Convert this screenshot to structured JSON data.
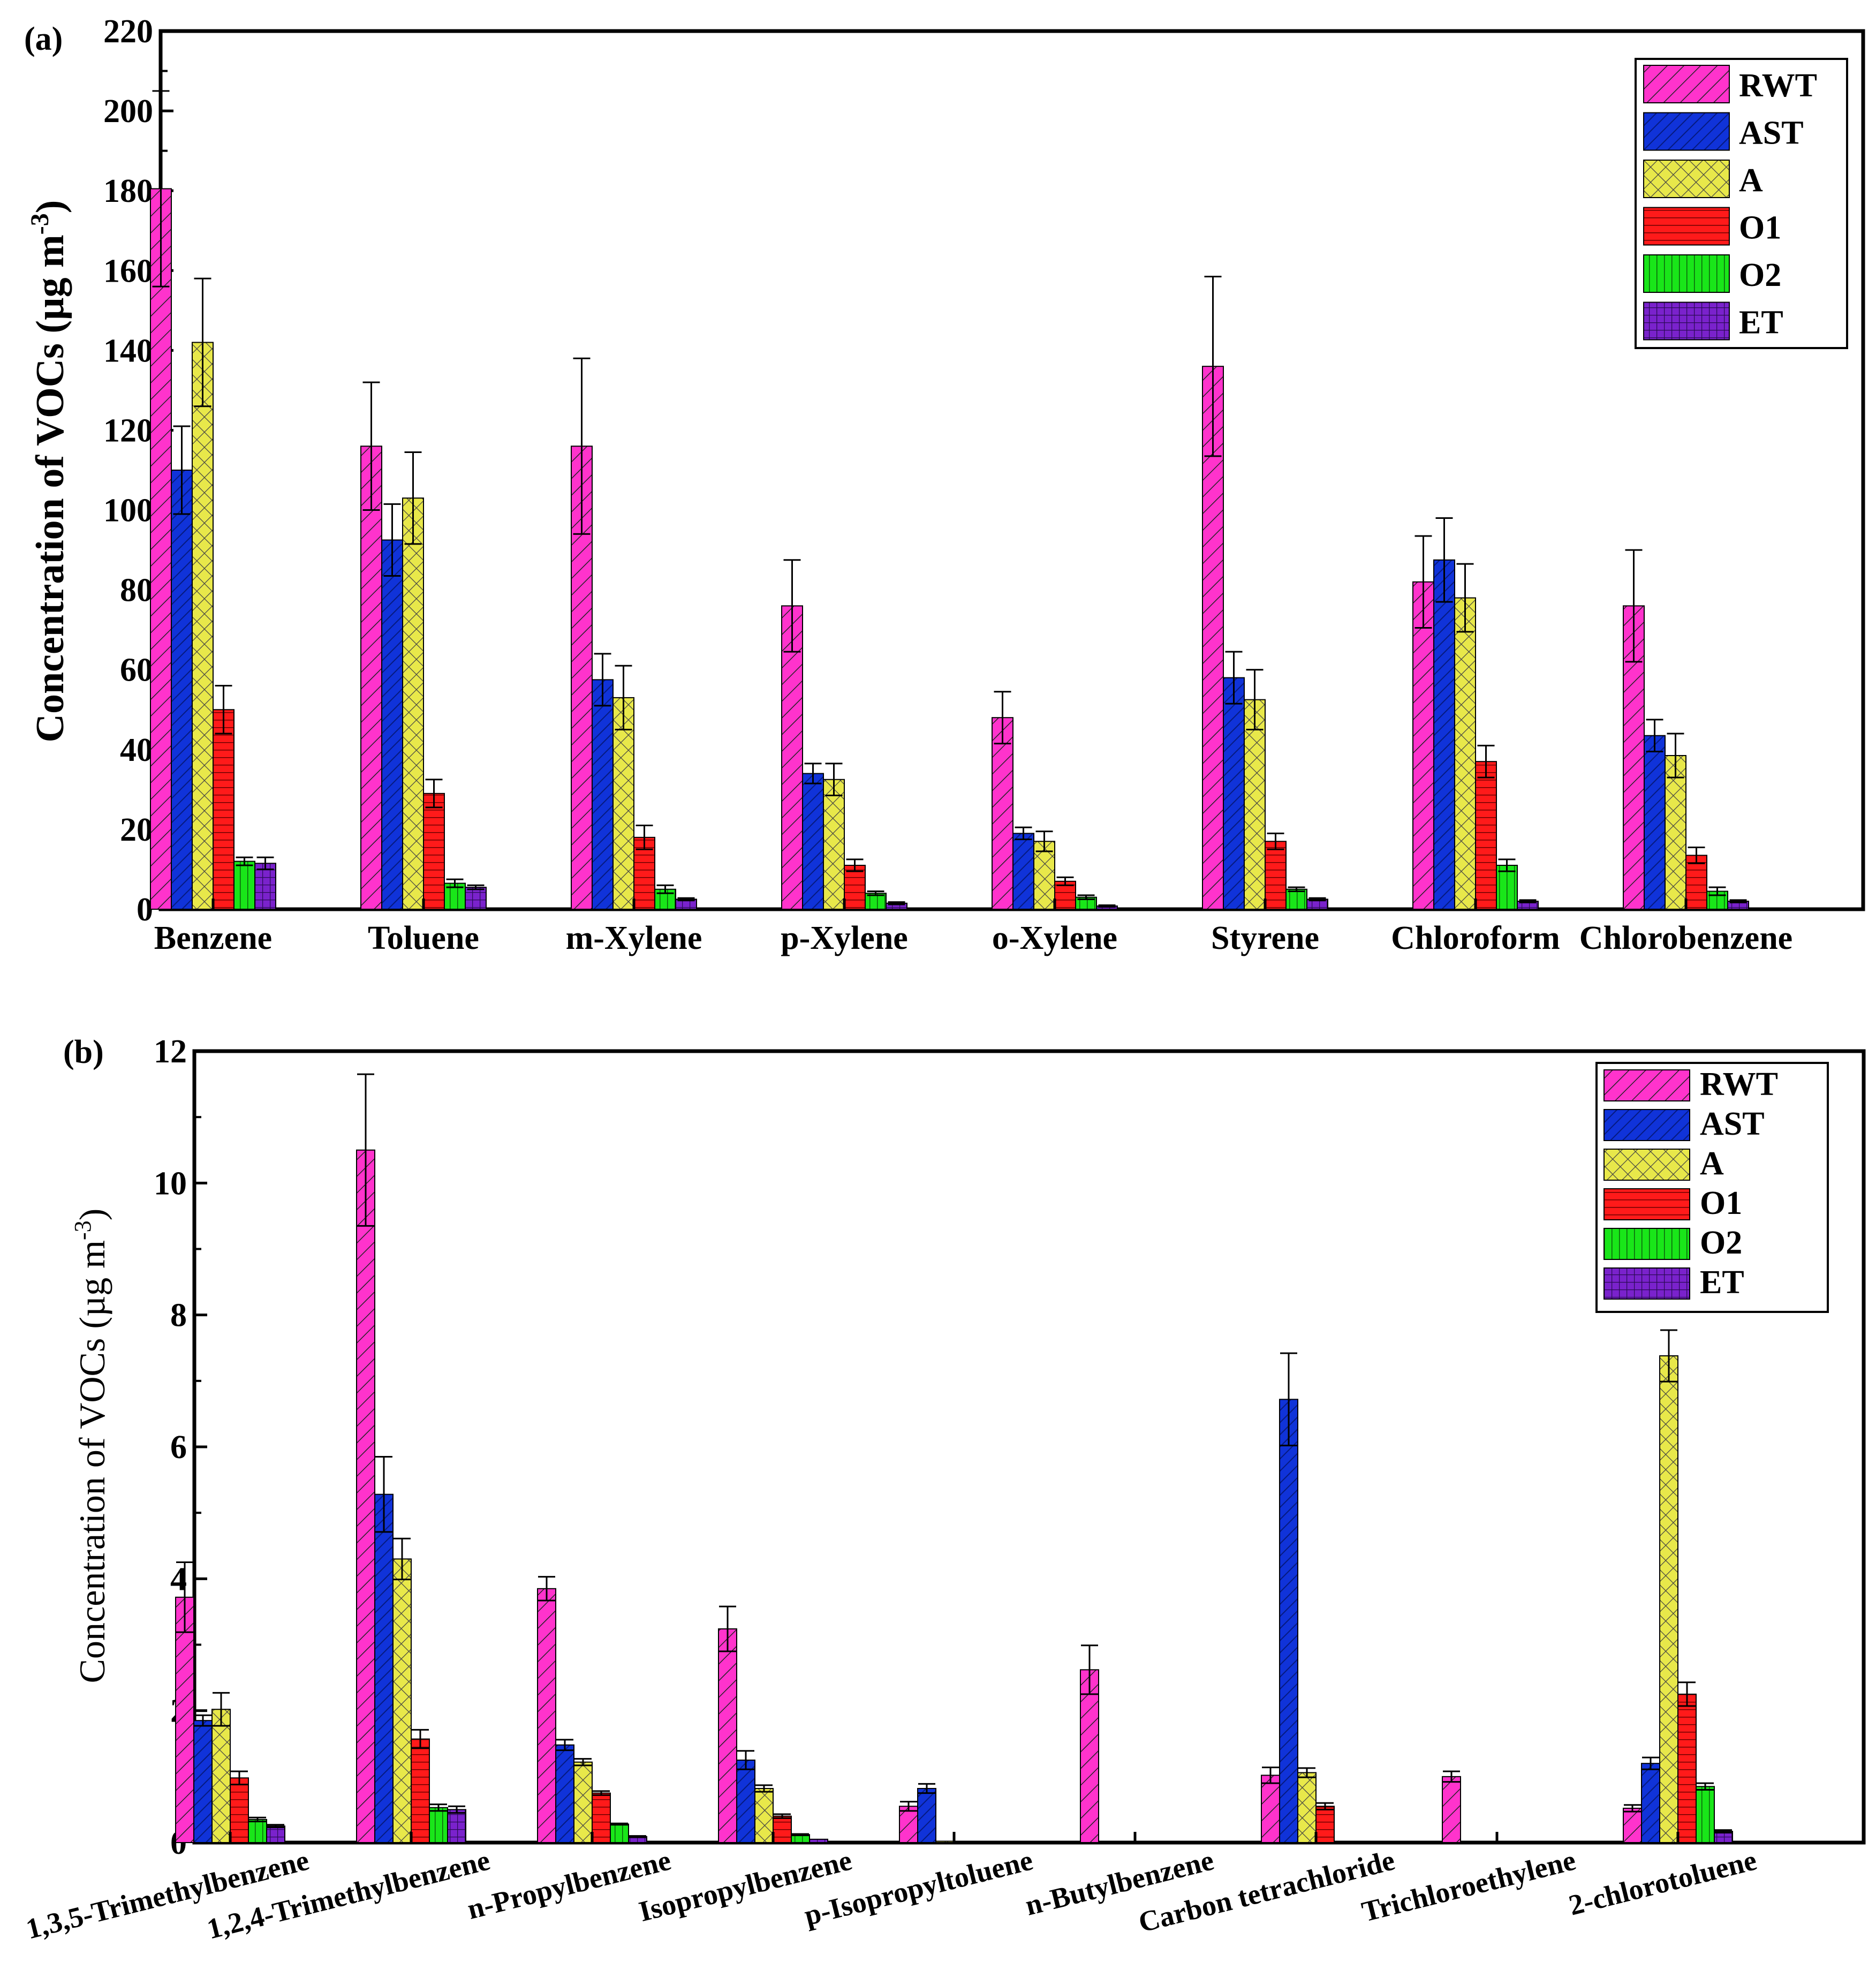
{
  "colors": {
    "RWT": "#ff33cc",
    "AST": "#1033d9",
    "A": "#e8e84a",
    "O1": "#ff1a1a",
    "O2": "#19e619",
    "ET": "#7a22cc"
  },
  "chart_data": [
    {
      "type": "bar",
      "panel_label": "(a)",
      "ylabel": "Concentration of VOCs (µg m",
      "ylabel_sup": "-3",
      "ylabel_close": ")",
      "ylim": [
        0,
        220
      ],
      "yticks": [
        0,
        20,
        40,
        60,
        80,
        100,
        120,
        140,
        160,
        180,
        200,
        220
      ],
      "legend_position": "top-right",
      "categories": [
        "Benzene",
        "Toluene",
        "m-Xylene",
        "p-Xylene",
        "o-Xylene",
        "Styrene",
        "Chloroform",
        "Chlorobenzene"
      ],
      "series": [
        {
          "name": "RWT",
          "values": [
            180.5,
            116,
            116,
            76,
            48,
            136,
            82,
            76
          ],
          "errors": [
            24.5,
            16,
            22,
            11.5,
            6.5,
            22.5,
            11.5,
            14
          ]
        },
        {
          "name": "AST",
          "values": [
            110,
            92.5,
            57.5,
            34,
            19,
            58,
            87.5,
            43.5
          ],
          "errors": [
            11,
            9,
            6.5,
            2.5,
            1.5,
            6.5,
            10.5,
            4
          ]
        },
        {
          "name": "A",
          "values": [
            142,
            103,
            53,
            32.5,
            17,
            52.5,
            78,
            38.5
          ],
          "errors": [
            16,
            11.5,
            8,
            4,
            2.5,
            7.5,
            8.5,
            5.5
          ]
        },
        {
          "name": "O1",
          "values": [
            50,
            29,
            18,
            11,
            7,
            17,
            37,
            13.5
          ],
          "errors": [
            6,
            3.5,
            3,
            1.5,
            1,
            2,
            4,
            2
          ]
        },
        {
          "name": "O2",
          "values": [
            12,
            6.5,
            5,
            4,
            3,
            5,
            11,
            4.5
          ],
          "errors": [
            1,
            1,
            1,
            0.5,
            0.5,
            0.5,
            1.5,
            1
          ]
        },
        {
          "name": "ET",
          "values": [
            11.5,
            5.5,
            2.5,
            1.5,
            0.8,
            2.5,
            2,
            2
          ],
          "errors": [
            1.5,
            0.5,
            0.3,
            0.3,
            0.2,
            0.3,
            0.3,
            0.3
          ]
        }
      ]
    },
    {
      "type": "bar",
      "panel_label": "(b)",
      "ylabel": "Concentration of VOCs (µg m",
      "ylabel_sup": "-3",
      "ylabel_close": ")",
      "ylim": [
        0,
        12
      ],
      "yticks": [
        0,
        2,
        4,
        6,
        8,
        10,
        12
      ],
      "legend_position": "top-right",
      "categories": [
        "1,3,5-Trimethylbenzene",
        "1,2,4-Trimethylbenzene",
        "n-Propylbenzene",
        "Isopropylbenzene",
        "p-Isopropyltoluene",
        "n-Butylbenzene",
        "Carbon tetrachloride",
        "Trichloroethylene",
        "2-chlorotoluene"
      ],
      "series": [
        {
          "name": "RWT",
          "values": [
            3.72,
            10.5,
            3.85,
            3.24,
            0.55,
            2.62,
            1.02,
            1.0,
            0.52
          ],
          "errors": [
            0.53,
            1.15,
            0.18,
            0.34,
            0.07,
            0.37,
            0.12,
            0.08,
            0.05
          ]
        },
        {
          "name": "AST",
          "values": [
            1.85,
            5.28,
            1.48,
            1.25,
            0.82,
            0,
            6.72,
            0,
            1.2
          ],
          "errors": [
            0.08,
            0.57,
            0.08,
            0.14,
            0.07,
            0,
            0.7,
            0,
            0.09
          ]
        },
        {
          "name": "A",
          "values": [
            2.02,
            4.3,
            1.22,
            0.82,
            0.02,
            0,
            1.06,
            0,
            7.38
          ],
          "errors": [
            0.25,
            0.31,
            0.05,
            0.05,
            0,
            0,
            0.07,
            0,
            0.39
          ]
        },
        {
          "name": "O1",
          "values": [
            0.98,
            1.57,
            0.75,
            0.4,
            0,
            0,
            0.55,
            0,
            2.25
          ],
          "errors": [
            0.1,
            0.14,
            0.03,
            0.03,
            0,
            0,
            0.05,
            0,
            0.18
          ]
        },
        {
          "name": "O2",
          "values": [
            0.35,
            0.53,
            0.28,
            0.12,
            0,
            0,
            0,
            0,
            0.85
          ],
          "errors": [
            0.03,
            0.05,
            0.01,
            0.01,
            0,
            0,
            0,
            0,
            0.05
          ]
        },
        {
          "name": "ET",
          "values": [
            0.25,
            0.5,
            0.09,
            0.05,
            0,
            0,
            0,
            0,
            0.17
          ],
          "errors": [
            0.02,
            0.05,
            0.01,
            0,
            0,
            0,
            0,
            0,
            0.02
          ]
        }
      ]
    }
  ]
}
